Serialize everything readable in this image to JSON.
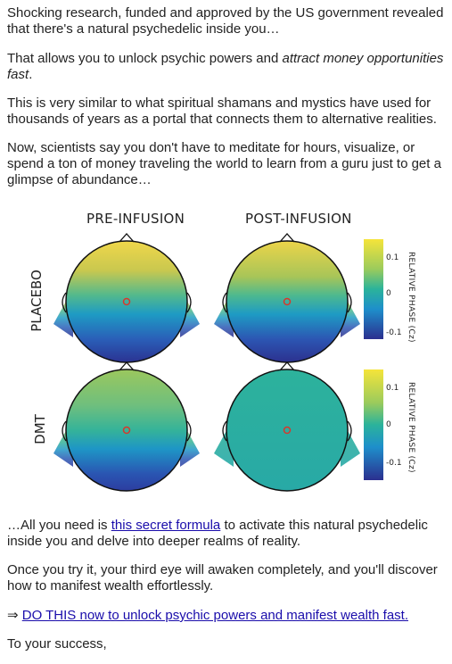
{
  "intro": {
    "p1": "Shocking research, funded and approved by the US government revealed that there's a natural psychedelic inside you…",
    "p2_start": "That allows you to unlock psychic powers and ",
    "p2_italic": "attract money opportunities fast",
    "p2_end": ".",
    "p3": "This is very similar to what spiritual shamans and mystics have used for thousands of years as a portal that connects them to alternative realities.",
    "p4": "Now, scientists say you don't have to meditate for hours, visualize, or spend a ton of money traveling the world to learn from a guru just to get a glimpse of abundance…"
  },
  "figure": {
    "col_titles": [
      "PRE-INFUSION",
      "POST-INFUSION"
    ],
    "row_labels": [
      "PLACEBO",
      "DMT"
    ],
    "colorbar_label": "RELATIVE PHASE (Cz)",
    "ticks": [
      "0.1",
      "0",
      "-0.1"
    ],
    "colors": {
      "high": "#f5e43a",
      "mid": "#2bb39b",
      "low": "#2b2f8f"
    }
  },
  "outro": {
    "p5_start": "…All you need is ",
    "p5_link": "this secret formula",
    "p5_end": " to activate this natural psychedelic inside you and delve into deeper realms of reality.",
    "p6": "Once you try it, your third eye will awaken completely, and you'll discover how to manifest wealth effortlessly.",
    "cta_arrow": "⇒ ",
    "cta_link": "DO THIS now to unlock psychic powers and manifest wealth fast.",
    "signoff": "To your success,"
  }
}
